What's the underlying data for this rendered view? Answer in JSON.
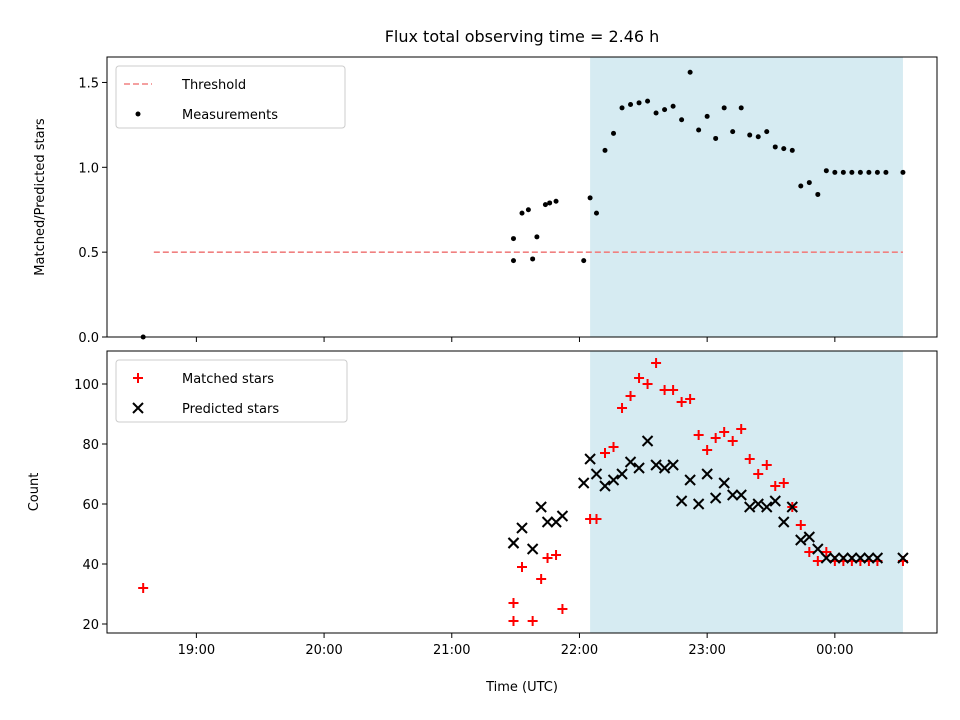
{
  "chart_data": [
    {
      "type": "scatter",
      "title": "Flux total observing time = 2.46 h",
      "xlabel": "",
      "ylabel": "Matched/Predicted stars",
      "xlim": [
        "18:18",
        "00:48"
      ],
      "ylim": [
        0,
        1.65
      ],
      "y_ticks": [
        "0.0",
        "0.5",
        "1.0",
        "1.5"
      ],
      "y_tick_values": [
        0,
        0.5,
        1.0,
        1.5
      ],
      "legend_position": "top-left",
      "shaded_span": {
        "start": "22:05",
        "end": "00:32",
        "color": "#add8e6"
      },
      "series": [
        {
          "name": "Threshold",
          "kind": "line",
          "style": "dashed",
          "color": "#f08080",
          "x": [
            "18:40",
            "00:32"
          ],
          "y": [
            0.5,
            0.5
          ]
        },
        {
          "name": "Measurements",
          "kind": "scatter",
          "marker": "dot",
          "color": "#000000",
          "x": [
            "18:35",
            "21:29",
            "21:29",
            "21:33",
            "21:36",
            "21:38",
            "21:40",
            "21:44",
            "21:46",
            "21:49",
            "22:02",
            "22:05",
            "22:08",
            "22:12",
            "22:16",
            "22:20",
            "22:24",
            "22:28",
            "22:32",
            "22:36",
            "22:40",
            "22:44",
            "22:48",
            "22:52",
            "22:56",
            "23:00",
            "23:04",
            "23:08",
            "23:12",
            "23:16",
            "23:20",
            "23:24",
            "23:28",
            "23:32",
            "23:36",
            "23:40",
            "23:44",
            "23:48",
            "23:52",
            "23:56",
            "00:00",
            "00:04",
            "00:08",
            "00:12",
            "00:16",
            "00:20",
            "00:24",
            "00:32"
          ],
          "y": [
            0.0,
            0.45,
            0.58,
            0.73,
            0.75,
            0.46,
            0.59,
            0.78,
            0.79,
            0.8,
            0.45,
            0.82,
            0.73,
            1.1,
            1.2,
            1.35,
            1.37,
            1.38,
            1.39,
            1.32,
            1.34,
            1.36,
            1.28,
            1.56,
            1.22,
            1.3,
            1.17,
            1.35,
            1.21,
            1.35,
            1.19,
            1.18,
            1.21,
            1.12,
            1.11,
            1.1,
            0.89,
            0.91,
            0.84,
            0.98,
            0.97,
            0.97,
            0.97,
            0.97,
            0.97,
            0.97,
            0.97,
            0.97
          ]
        }
      ]
    },
    {
      "type": "scatter",
      "title": "",
      "xlabel": "Time (UTC)",
      "ylabel": "Count",
      "xlim": [
        "18:18",
        "00:48"
      ],
      "ylim": [
        17,
        111
      ],
      "x_ticks": [
        "19:00",
        "20:00",
        "21:00",
        "22:00",
        "23:00",
        "00:00"
      ],
      "y_ticks": [
        "20",
        "40",
        "60",
        "80",
        "100"
      ],
      "y_tick_values": [
        20,
        40,
        60,
        80,
        100
      ],
      "legend_position": "top-left",
      "shaded_span": {
        "start": "22:05",
        "end": "00:32",
        "color": "#add8e6"
      },
      "series": [
        {
          "name": "Matched stars",
          "kind": "scatter",
          "marker": "plus",
          "color": "#ff0000",
          "x": [
            "18:35",
            "21:29",
            "21:29",
            "21:33",
            "21:38",
            "21:42",
            "21:45",
            "21:49",
            "21:52",
            "22:05",
            "22:08",
            "22:12",
            "22:16",
            "22:20",
            "22:24",
            "22:28",
            "22:32",
            "22:36",
            "22:40",
            "22:44",
            "22:48",
            "22:52",
            "22:56",
            "23:00",
            "23:04",
            "23:08",
            "23:12",
            "23:16",
            "23:20",
            "23:24",
            "23:28",
            "23:32",
            "23:36",
            "23:40",
            "23:44",
            "23:48",
            "23:52",
            "23:56",
            "00:00",
            "00:04",
            "00:08",
            "00:12",
            "00:16",
            "00:20",
            "00:32"
          ],
          "y": [
            32,
            21,
            27,
            39,
            21,
            35,
            42,
            43,
            25,
            55,
            55,
            77,
            79,
            92,
            96,
            102,
            100,
            107,
            98,
            98,
            94,
            95,
            83,
            78,
            82,
            84,
            81,
            85,
            75,
            70,
            73,
            66,
            67,
            59,
            53,
            44,
            41,
            44,
            41,
            41,
            41,
            41,
            41,
            41,
            41
          ]
        },
        {
          "name": "Predicted stars",
          "kind": "scatter",
          "marker": "x",
          "color": "#000000",
          "x": [
            "21:29",
            "21:29",
            "21:33",
            "21:38",
            "21:42",
            "21:45",
            "21:49",
            "21:52",
            "22:02",
            "22:05",
            "22:08",
            "22:12",
            "22:16",
            "22:20",
            "22:24",
            "22:28",
            "22:32",
            "22:36",
            "22:40",
            "22:44",
            "22:48",
            "22:52",
            "22:56",
            "23:00",
            "23:04",
            "23:08",
            "23:12",
            "23:16",
            "23:20",
            "23:24",
            "23:28",
            "23:32",
            "23:36",
            "23:40",
            "23:44",
            "23:48",
            "23:52",
            "23:56",
            "00:00",
            "00:04",
            "00:08",
            "00:12",
            "00:16",
            "00:20",
            "00:32"
          ],
          "y": [
            47,
            47,
            52,
            45,
            59,
            54,
            54,
            56,
            67,
            75,
            70,
            66,
            68,
            70,
            74,
            72,
            81,
            73,
            72,
            73,
            61,
            68,
            60,
            70,
            62,
            67,
            63,
            63,
            59,
            60,
            59,
            61,
            54,
            59,
            48,
            49,
            45,
            42,
            42,
            42,
            42,
            42,
            42,
            42,
            42
          ]
        }
      ]
    }
  ]
}
